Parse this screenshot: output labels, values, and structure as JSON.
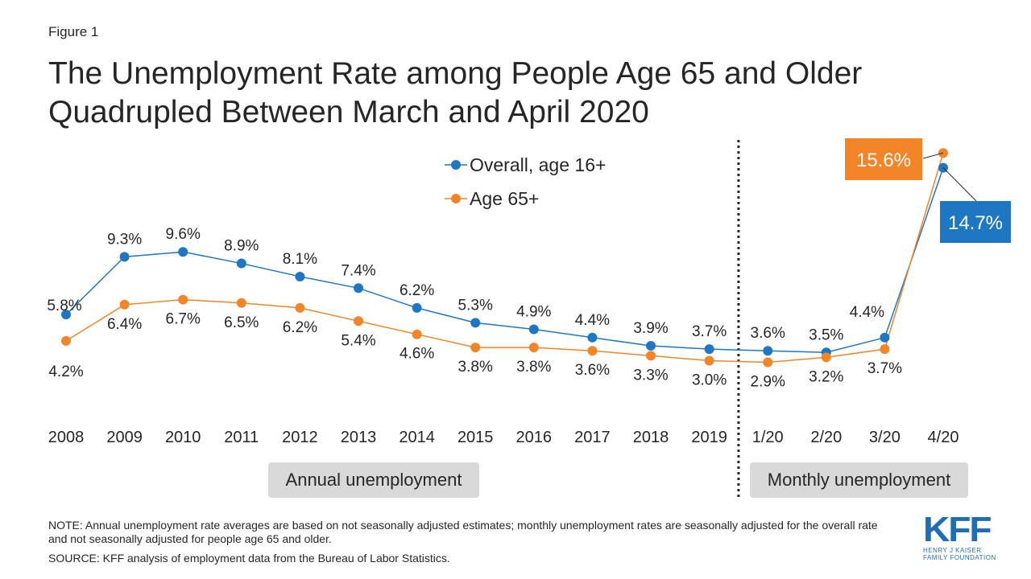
{
  "figure_label": "Figure 1",
  "title_line1": "The Unemployment Rate among People Age 65 and Older",
  "title_line2": "Quadrupled Between March and April 2020",
  "annotations": {
    "annual": "Annual unemployment",
    "monthly": "Monthly unemployment"
  },
  "note": "NOTE: Annual unemployment rate averages are based on not seasonally adjusted estimates; monthly unemployment rates are seasonally adjusted for the overall rate and not seasonally adjusted for people age 65 and older.",
  "source": "SOURCE: KFF analysis of employment data from the Bureau of Labor Statistics.",
  "logo": {
    "mark": "KFF",
    "line1": "HENRY J KAISER",
    "line2": "FAMILY FOUNDATION"
  },
  "colors": {
    "overall": "#1f77c4",
    "age65": "#f28527",
    "text": "#262626"
  },
  "chart_data": {
    "type": "line",
    "title": "The Unemployment Rate among People Age 65 and Older Quadrupled Between March and April 2020",
    "categories": [
      "2008",
      "2009",
      "2010",
      "2011",
      "2012",
      "2013",
      "2014",
      "2015",
      "2016",
      "2017",
      "2018",
      "2019",
      "1/20",
      "2/20",
      "3/20",
      "4/20"
    ],
    "ylim": [
      0,
      17
    ],
    "grid": false,
    "legend_position": "top-center",
    "divider_after": "2019",
    "series": [
      {
        "name": "Overall, age 16+",
        "key": "overall",
        "values": [
          5.8,
          9.3,
          9.6,
          8.9,
          8.1,
          7.4,
          6.2,
          5.3,
          4.9,
          4.4,
          3.9,
          3.7,
          3.6,
          3.5,
          4.4,
          14.7
        ],
        "labels": [
          "5.8%",
          "9.3%",
          "9.6%",
          "8.9%",
          "8.1%",
          "7.4%",
          "6.2%",
          "5.3%",
          "4.9%",
          "4.4%",
          "3.9%",
          "3.7%",
          "3.6%",
          "3.5%",
          "4.4%",
          "14.7%"
        ]
      },
      {
        "name": "Age 65+",
        "key": "age65",
        "values": [
          4.2,
          6.4,
          6.7,
          6.5,
          6.2,
          5.4,
          4.6,
          3.8,
          3.8,
          3.6,
          3.3,
          3.0,
          2.9,
          3.2,
          3.7,
          15.6
        ],
        "labels": [
          "4.2%",
          "6.4%",
          "6.7%",
          "6.5%",
          "6.2%",
          "5.4%",
          "4.6%",
          "3.8%",
          "3.8%",
          "3.6%",
          "3.3%",
          "3.0%",
          "2.9%",
          "3.2%",
          "3.7%",
          "15.6%"
        ]
      }
    ]
  }
}
